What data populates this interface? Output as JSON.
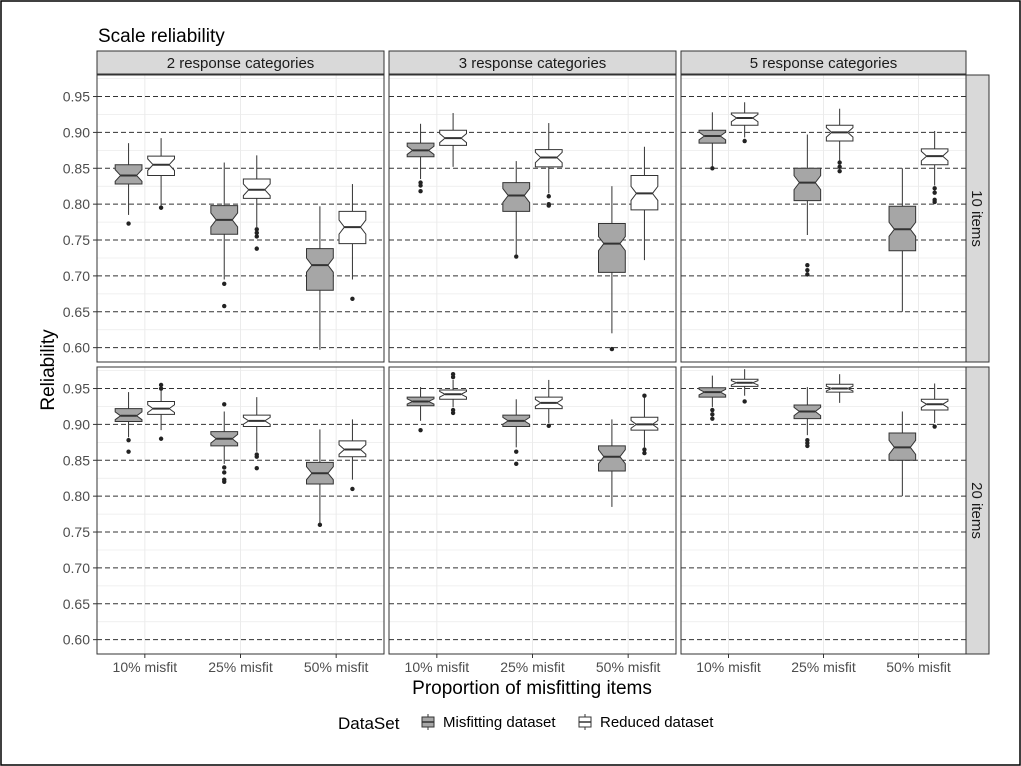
{
  "chart_data": {
    "type": "boxplot",
    "title": "Scale reliability",
    "xlabel": "Proportion of misfitting items",
    "ylabel": "Reliability",
    "ylim": [
      0.58,
      0.98
    ],
    "yticks": [
      "0.60",
      "0.65",
      "0.70",
      "0.75",
      "0.80",
      "0.85",
      "0.90",
      "0.95"
    ],
    "categories": [
      "10% misfit",
      "25% misfit",
      "50% misfit"
    ],
    "col_facets": [
      "2 response categories",
      "3 response categories",
      "5 response categories"
    ],
    "row_facets": [
      "10 items",
      "20 items"
    ],
    "legend": {
      "title": "DataSet",
      "position": "bottom",
      "entries": [
        {
          "name": "Misfitting dataset",
          "color": "#a6a6a6"
        },
        {
          "name": "Reduced dataset",
          "color": "#ffffff"
        }
      ]
    },
    "grid": true,
    "notched": true,
    "series": [
      {
        "name": "Misfitting dataset",
        "color": "#a6a6a6"
      },
      {
        "name": "Reduced dataset",
        "color": "#ffffff"
      }
    ],
    "panels": [
      {
        "row": "10 items",
        "col": "2 response categories",
        "groups": [
          {
            "category": "10% misfit",
            "series": "Misfitting dataset",
            "q1": 0.828,
            "median": 0.84,
            "q3": 0.855,
            "whisker_low": 0.785,
            "whisker_high": 0.885,
            "outliers": [
              0.773
            ]
          },
          {
            "category": "10% misfit",
            "series": "Reduced dataset",
            "q1": 0.84,
            "median": 0.855,
            "q3": 0.867,
            "whisker_low": 0.798,
            "whisker_high": 0.892,
            "outliers": [
              0.795
            ]
          },
          {
            "category": "25% misfit",
            "series": "Misfitting dataset",
            "q1": 0.758,
            "median": 0.778,
            "q3": 0.798,
            "whisker_low": 0.695,
            "whisker_high": 0.858,
            "outliers": [
              0.689,
              0.658
            ]
          },
          {
            "category": "25% misfit",
            "series": "Reduced dataset",
            "q1": 0.808,
            "median": 0.82,
            "q3": 0.835,
            "whisker_low": 0.768,
            "whisker_high": 0.868,
            "outliers": [
              0.765,
              0.76,
              0.755,
              0.738
            ]
          },
          {
            "category": "50% misfit",
            "series": "Misfitting dataset",
            "q1": 0.68,
            "median": 0.715,
            "q3": 0.738,
            "whisker_low": 0.597,
            "whisker_high": 0.797,
            "outliers": []
          },
          {
            "category": "50% misfit",
            "series": "Reduced dataset",
            "q1": 0.745,
            "median": 0.768,
            "q3": 0.79,
            "whisker_low": 0.695,
            "whisker_high": 0.828,
            "outliers": [
              0.668
            ]
          }
        ]
      },
      {
        "row": "10 items",
        "col": "3 response categories",
        "groups": [
          {
            "category": "10% misfit",
            "series": "Misfitting dataset",
            "q1": 0.866,
            "median": 0.875,
            "q3": 0.885,
            "whisker_low": 0.835,
            "whisker_high": 0.912,
            "outliers": [
              0.83,
              0.826,
              0.818
            ]
          },
          {
            "category": "10% misfit",
            "series": "Reduced dataset",
            "q1": 0.882,
            "median": 0.892,
            "q3": 0.903,
            "whisker_low": 0.852,
            "whisker_high": 0.927,
            "outliers": []
          },
          {
            "category": "25% misfit",
            "series": "Misfitting dataset",
            "q1": 0.79,
            "median": 0.812,
            "q3": 0.83,
            "whisker_low": 0.73,
            "whisker_high": 0.86,
            "outliers": [
              0.727
            ]
          },
          {
            "category": "25% misfit",
            "series": "Reduced dataset",
            "q1": 0.852,
            "median": 0.865,
            "q3": 0.876,
            "whisker_low": 0.815,
            "whisker_high": 0.913,
            "outliers": [
              0.811,
              0.8,
              0.798
            ]
          },
          {
            "category": "50% misfit",
            "series": "Misfitting dataset",
            "q1": 0.705,
            "median": 0.745,
            "q3": 0.773,
            "whisker_low": 0.62,
            "whisker_high": 0.825,
            "outliers": [
              0.598
            ]
          },
          {
            "category": "50% misfit",
            "series": "Reduced dataset",
            "q1": 0.792,
            "median": 0.815,
            "q3": 0.84,
            "whisker_low": 0.722,
            "whisker_high": 0.88,
            "outliers": []
          }
        ]
      },
      {
        "row": "10 items",
        "col": "5 response categories",
        "groups": [
          {
            "category": "10% misfit",
            "series": "Misfitting dataset",
            "q1": 0.885,
            "median": 0.895,
            "q3": 0.903,
            "whisker_low": 0.852,
            "whisker_high": 0.928,
            "outliers": [
              0.85
            ]
          },
          {
            "category": "10% misfit",
            "series": "Reduced dataset",
            "q1": 0.91,
            "median": 0.92,
            "q3": 0.927,
            "whisker_low": 0.893,
            "whisker_high": 0.942,
            "outliers": [
              0.888
            ]
          },
          {
            "category": "25% misfit",
            "series": "Misfitting dataset",
            "q1": 0.805,
            "median": 0.83,
            "q3": 0.85,
            "whisker_low": 0.757,
            "whisker_high": 0.897,
            "outliers": [
              0.715,
              0.708,
              0.702
            ]
          },
          {
            "category": "25% misfit",
            "series": "Reduced dataset",
            "q1": 0.888,
            "median": 0.9,
            "q3": 0.91,
            "whisker_low": 0.86,
            "whisker_high": 0.933,
            "outliers": [
              0.858,
              0.852,
              0.846
            ]
          },
          {
            "category": "50% misfit",
            "series": "Misfitting dataset",
            "q1": 0.735,
            "median": 0.765,
            "q3": 0.797,
            "whisker_low": 0.65,
            "whisker_high": 0.85,
            "outliers": []
          },
          {
            "category": "50% misfit",
            "series": "Reduced dataset",
            "q1": 0.855,
            "median": 0.867,
            "q3": 0.877,
            "whisker_low": 0.826,
            "whisker_high": 0.902,
            "outliers": [
              0.822,
              0.816,
              0.806,
              0.803
            ]
          }
        ]
      },
      {
        "row": "20 items",
        "col": "2 response categories",
        "groups": [
          {
            "category": "10% misfit",
            "series": "Misfitting dataset",
            "q1": 0.904,
            "median": 0.912,
            "q3": 0.922,
            "whisker_low": 0.882,
            "whisker_high": 0.945,
            "outliers": [
              0.878,
              0.862
            ]
          },
          {
            "category": "10% misfit",
            "series": "Reduced dataset",
            "q1": 0.914,
            "median": 0.922,
            "q3": 0.932,
            "whisker_low": 0.892,
            "whisker_high": 0.952,
            "outliers": [
              0.88,
              0.955,
              0.95
            ]
          },
          {
            "category": "25% misfit",
            "series": "Misfitting dataset",
            "q1": 0.87,
            "median": 0.88,
            "q3": 0.89,
            "whisker_low": 0.845,
            "whisker_high": 0.918,
            "outliers": [
              0.928,
              0.84,
              0.833,
              0.823,
              0.82
            ]
          },
          {
            "category": "25% misfit",
            "series": "Reduced dataset",
            "q1": 0.897,
            "median": 0.905,
            "q3": 0.913,
            "whisker_low": 0.862,
            "whisker_high": 0.938,
            "outliers": [
              0.858,
              0.855,
              0.839
            ]
          },
          {
            "category": "50% misfit",
            "series": "Misfitting dataset",
            "q1": 0.817,
            "median": 0.832,
            "q3": 0.847,
            "whisker_low": 0.762,
            "whisker_high": 0.893,
            "outliers": [
              0.76
            ]
          },
          {
            "category": "50% misfit",
            "series": "Reduced dataset",
            "q1": 0.855,
            "median": 0.865,
            "q3": 0.877,
            "whisker_low": 0.823,
            "whisker_high": 0.907,
            "outliers": [
              0.81
            ]
          }
        ]
      },
      {
        "row": "20 items",
        "col": "3 response categories",
        "groups": [
          {
            "category": "10% misfit",
            "series": "Misfitting dataset",
            "q1": 0.926,
            "median": 0.932,
            "q3": 0.938,
            "whisker_low": 0.905,
            "whisker_high": 0.952,
            "outliers": [
              0.892
            ]
          },
          {
            "category": "10% misfit",
            "series": "Reduced dataset",
            "q1": 0.935,
            "median": 0.942,
            "q3": 0.948,
            "whisker_low": 0.924,
            "whisker_high": 0.962,
            "outliers": [
              0.97,
              0.966,
              0.92,
              0.916
            ]
          },
          {
            "category": "25% misfit",
            "series": "Misfitting dataset",
            "q1": 0.897,
            "median": 0.905,
            "q3": 0.913,
            "whisker_low": 0.868,
            "whisker_high": 0.935,
            "outliers": [
              0.862,
              0.845
            ]
          },
          {
            "category": "25% misfit",
            "series": "Reduced dataset",
            "q1": 0.922,
            "median": 0.93,
            "q3": 0.938,
            "whisker_low": 0.902,
            "whisker_high": 0.962,
            "outliers": [
              0.898
            ]
          },
          {
            "category": "50% misfit",
            "series": "Misfitting dataset",
            "q1": 0.835,
            "median": 0.855,
            "q3": 0.87,
            "whisker_low": 0.785,
            "whisker_high": 0.907,
            "outliers": []
          },
          {
            "category": "50% misfit",
            "series": "Reduced dataset",
            "q1": 0.892,
            "median": 0.9,
            "q3": 0.91,
            "whisker_low": 0.868,
            "whisker_high": 0.94,
            "outliers": [
              0.865,
              0.86,
              0.94
            ]
          }
        ]
      },
      {
        "row": "20 items",
        "col": "5 response categories",
        "groups": [
          {
            "category": "10% misfit",
            "series": "Misfitting dataset",
            "q1": 0.938,
            "median": 0.945,
            "q3": 0.951,
            "whisker_low": 0.924,
            "whisker_high": 0.968,
            "outliers": [
              0.92,
              0.914,
              0.908
            ]
          },
          {
            "category": "10% misfit",
            "series": "Reduced dataset",
            "q1": 0.953,
            "median": 0.958,
            "q3": 0.963,
            "whisker_low": 0.94,
            "whisker_high": 0.977,
            "outliers": [
              0.932
            ]
          },
          {
            "category": "25% misfit",
            "series": "Misfitting dataset",
            "q1": 0.908,
            "median": 0.918,
            "q3": 0.927,
            "whisker_low": 0.885,
            "whisker_high": 0.952,
            "outliers": [
              0.878,
              0.874,
              0.87
            ]
          },
          {
            "category": "25% misfit",
            "series": "Reduced dataset",
            "q1": 0.945,
            "median": 0.95,
            "q3": 0.956,
            "whisker_low": 0.93,
            "whisker_high": 0.97,
            "outliers": []
          },
          {
            "category": "50% misfit",
            "series": "Misfitting dataset",
            "q1": 0.85,
            "median": 0.868,
            "q3": 0.888,
            "whisker_low": 0.8,
            "whisker_high": 0.918,
            "outliers": []
          },
          {
            "category": "50% misfit",
            "series": "Reduced dataset",
            "q1": 0.92,
            "median": 0.928,
            "q3": 0.935,
            "whisker_low": 0.902,
            "whisker_high": 0.957,
            "outliers": [
              0.897
            ]
          }
        ]
      }
    ]
  }
}
